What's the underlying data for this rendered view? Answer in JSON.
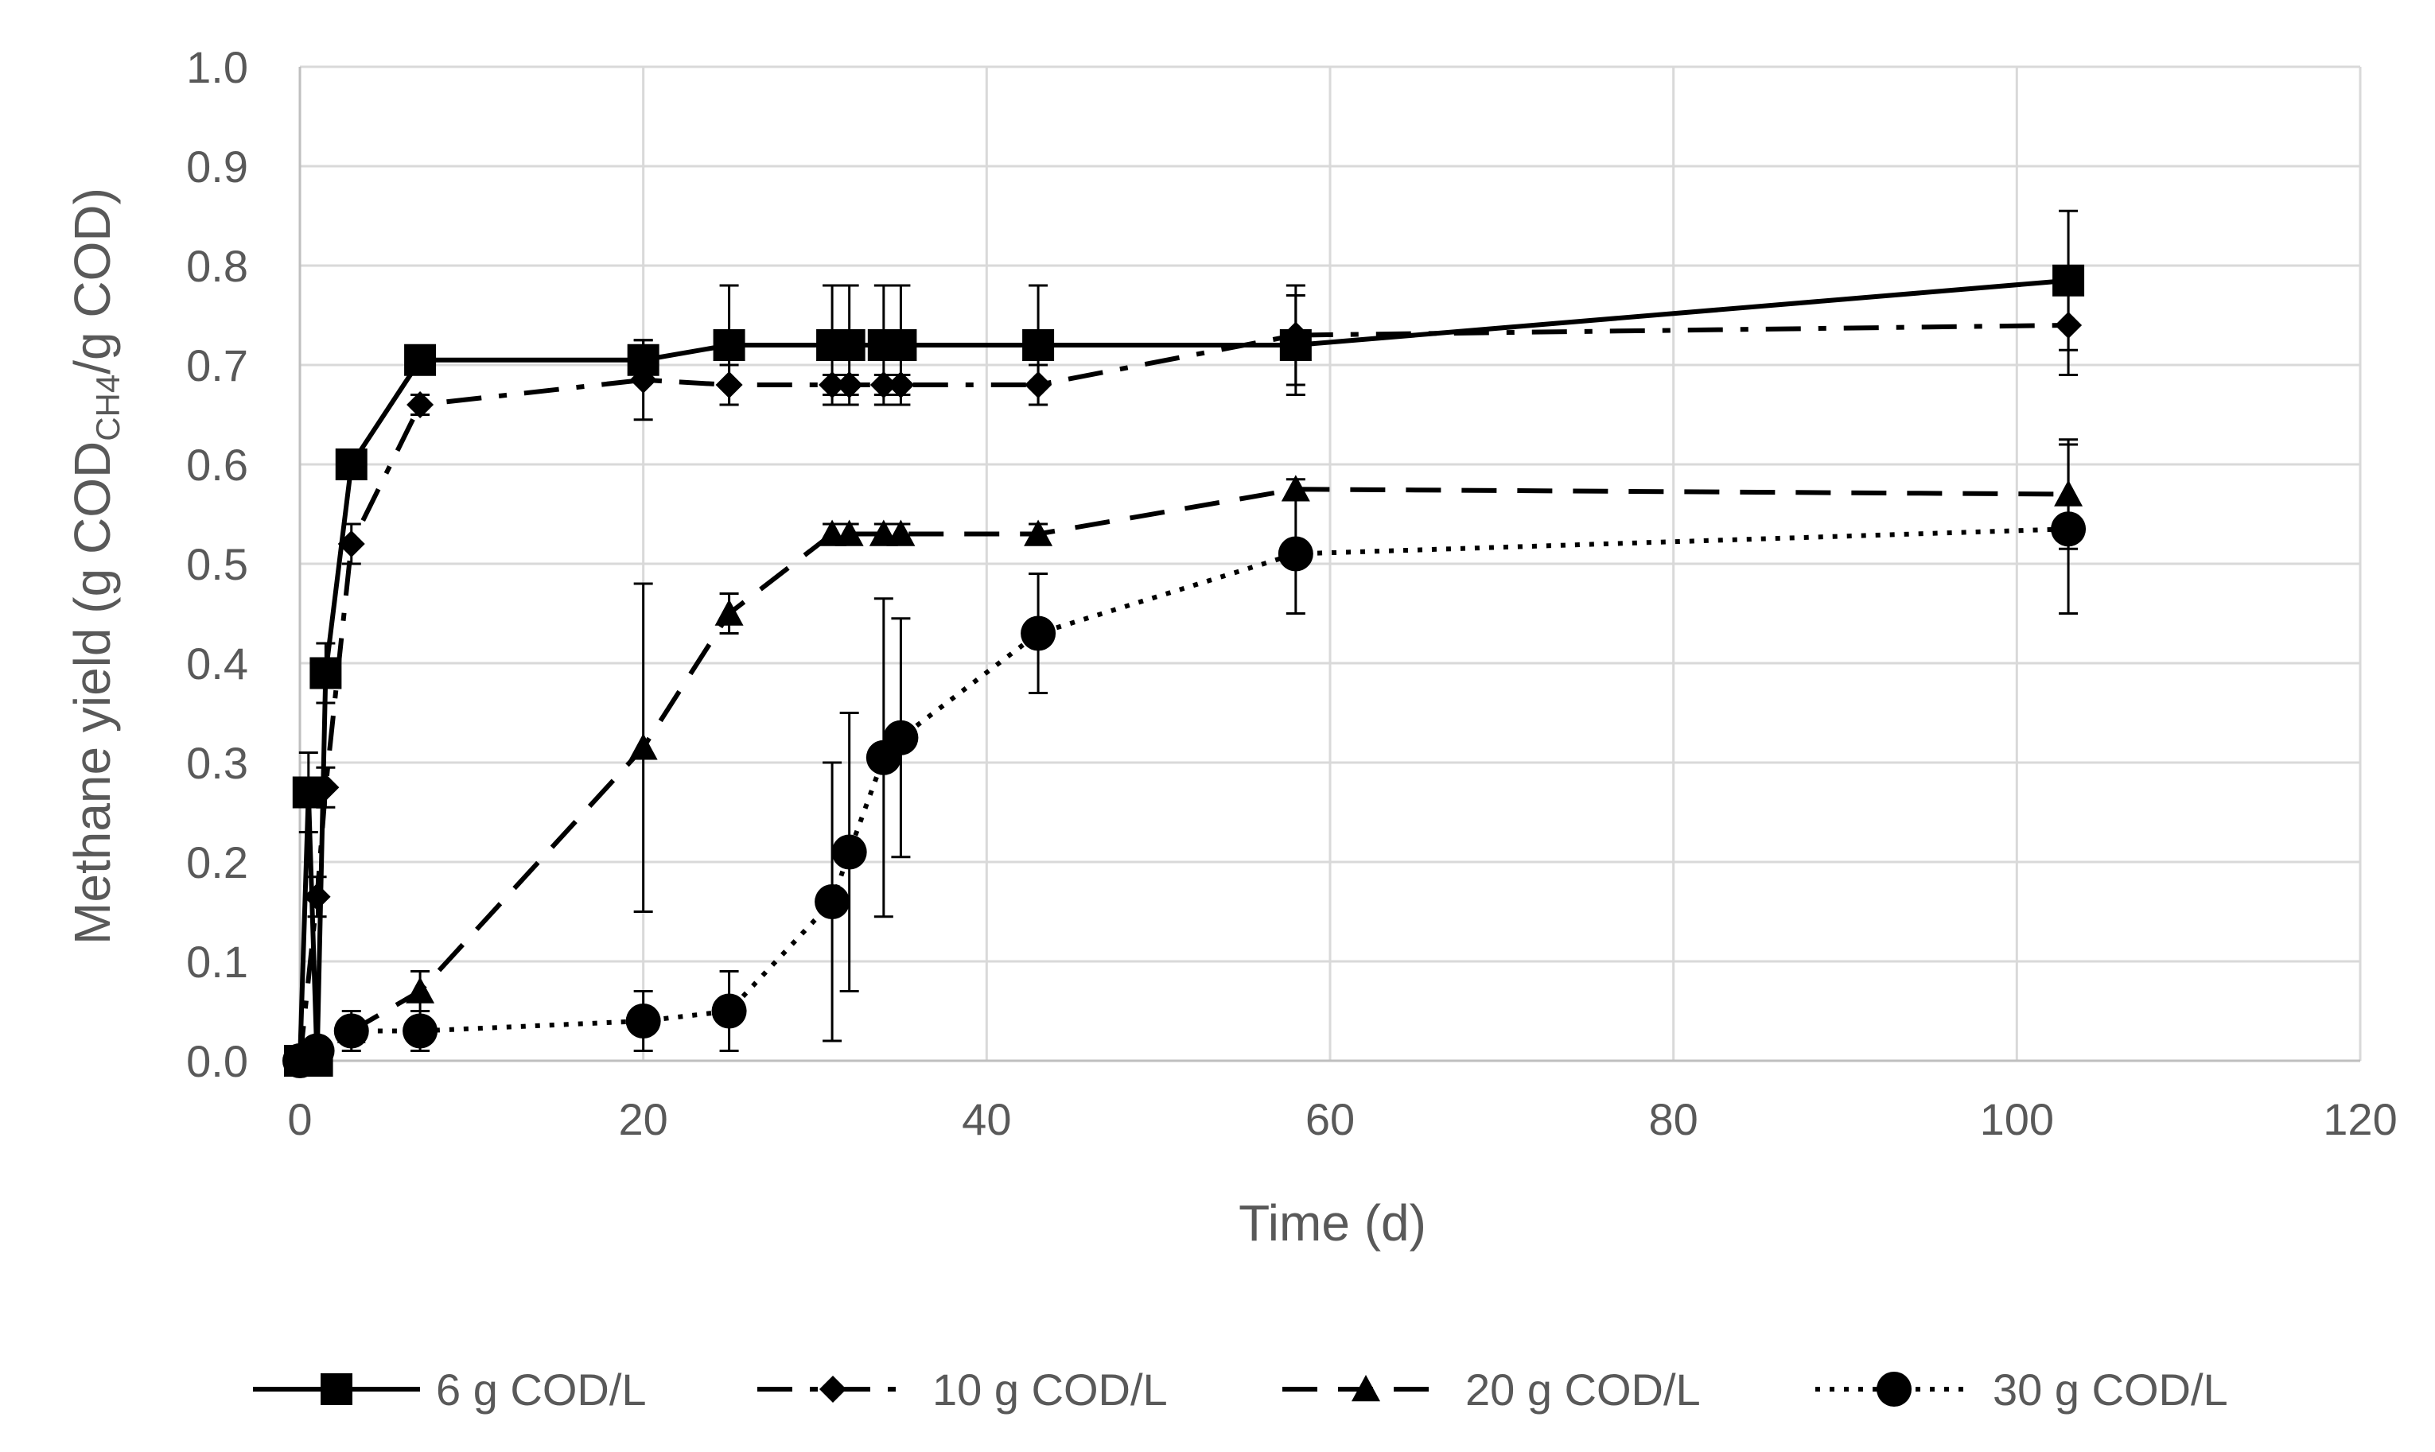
{
  "chart_data": {
    "type": "line",
    "title": "",
    "xlabel": "Time (d)",
    "ylabel": {
      "prefix": "Methane yield (g COD",
      "subscript": "CH4",
      "suffix": "/g COD)"
    },
    "xlim": [
      0,
      120
    ],
    "ylim": [
      0.0,
      1.0
    ],
    "xticks": [
      0,
      20,
      40,
      60,
      80,
      100,
      120
    ],
    "yticks": [
      0.0,
      0.1,
      0.2,
      0.3,
      0.4,
      0.5,
      0.6,
      0.7,
      0.8,
      0.9,
      1.0
    ],
    "ytick_labels": [
      "0.0",
      "0.1",
      "0.2",
      "0.3",
      "0.4",
      "0.5",
      "0.6",
      "0.7",
      "0.8",
      "0.9",
      "1.0"
    ],
    "grid": true,
    "legend_position": "bottom",
    "series": [
      {
        "name": "6 g COD/L",
        "marker": "square",
        "line": "solid",
        "x": [
          0,
          0.5,
          1,
          1.5,
          3,
          7,
          20,
          25,
          31,
          32,
          34,
          35,
          43,
          58,
          103
        ],
        "y": [
          0.0,
          0.27,
          0.0,
          0.39,
          0.6,
          0.705,
          0.705,
          0.72,
          0.72,
          0.72,
          0.72,
          0.72,
          0.72,
          0.72,
          0.785
        ],
        "err": [
          0,
          0.04,
          0,
          0.03,
          0.01,
          0.01,
          0.02,
          0.06,
          0.06,
          0.06,
          0.06,
          0.06,
          0.06,
          0.05,
          0.07
        ]
      },
      {
        "name": "10 g COD/L",
        "marker": "diamond",
        "line": "dashdot",
        "x": [
          0,
          1,
          1.5,
          3,
          7,
          20,
          25,
          31,
          32,
          34,
          35,
          43,
          58,
          103
        ],
        "y": [
          0.0,
          0.165,
          0.275,
          0.52,
          0.66,
          0.685,
          0.68,
          0.68,
          0.68,
          0.68,
          0.68,
          0.68,
          0.73,
          0.74
        ],
        "err": [
          0,
          0.02,
          0.02,
          0.02,
          0.01,
          0.04,
          0.02,
          0.01,
          0.01,
          0.01,
          0.01,
          0.02,
          0.05,
          0.05
        ]
      },
      {
        "name": "20 g COD/L",
        "marker": "triangle",
        "line": "dash",
        "x": [
          0,
          1,
          3,
          7,
          20,
          25,
          31,
          32,
          34,
          35,
          43,
          58,
          103
        ],
        "y": [
          0.0,
          0.01,
          0.03,
          0.07,
          0.315,
          0.45,
          0.53,
          0.53,
          0.53,
          0.53,
          0.53,
          0.575,
          0.57
        ],
        "err": [
          0,
          0.01,
          0.02,
          0.02,
          0.165,
          0.02,
          0.01,
          0.01,
          0.01,
          0.01,
          0.01,
          0.01,
          0.055
        ]
      },
      {
        "name": "30 g COD/L",
        "marker": "circle",
        "line": "dot",
        "x": [
          0,
          1,
          3,
          7,
          20,
          25,
          31,
          32,
          34,
          35,
          43,
          58,
          103
        ],
        "y": [
          0.0,
          0.01,
          0.03,
          0.03,
          0.04,
          0.05,
          0.16,
          0.21,
          0.305,
          0.325,
          0.43,
          0.51,
          0.535
        ],
        "err": [
          0,
          0.01,
          0.01,
          0.02,
          0.03,
          0.04,
          0.14,
          0.14,
          0.16,
          0.12,
          0.06,
          0.06,
          0.085
        ]
      }
    ]
  }
}
